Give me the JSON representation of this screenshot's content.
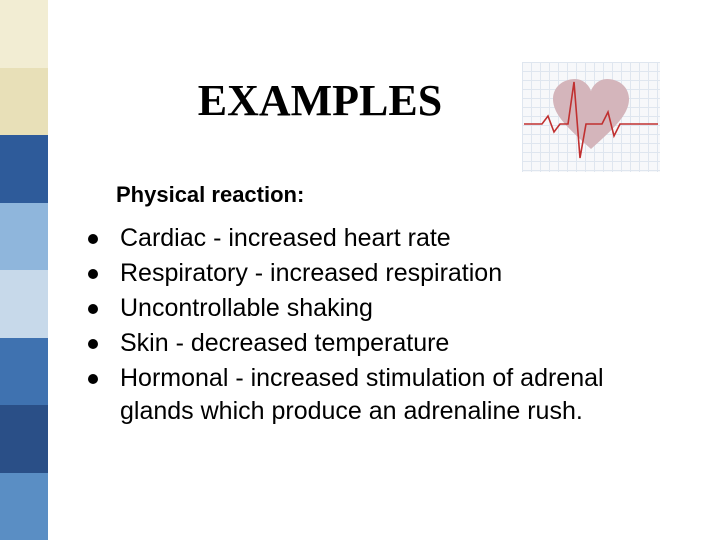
{
  "title": "EXAMPLES",
  "subtitle": "Physical reaction:",
  "bullets": [
    "Cardiac - increased heart rate",
    "Respiratory - increased respiration",
    "Uncontrollable shaking",
    "Skin - decreased temperature",
    "Hormonal - increased stimulation of adrenal glands which produce an adrenaline rush."
  ],
  "sidebar_colors": [
    "#f2edd3",
    "#e8e0b8",
    "#2e5b9a",
    "#8fb6dc",
    "#c7d9ea",
    "#3f72b0",
    "#2a4f87",
    "#5a8ec4"
  ],
  "heart": {
    "bg": "#f7f8fa",
    "grid": "#dfe6ef",
    "fill": "#d4b5bb",
    "stroke": "#c03030"
  },
  "typography": {
    "title_fontsize": 44,
    "subtitle_fontsize": 22,
    "body_fontsize": 25
  }
}
